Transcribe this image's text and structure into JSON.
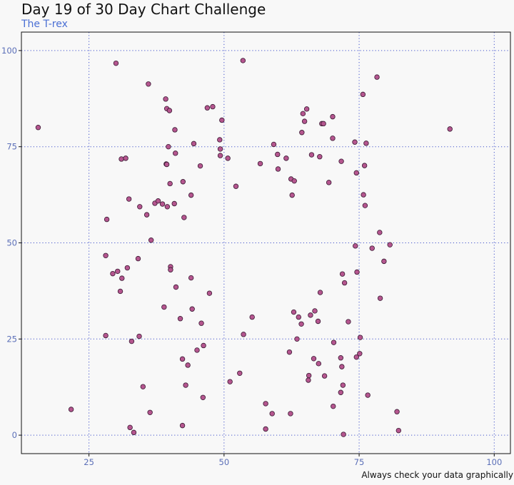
{
  "chart_data": {
    "type": "scatter",
    "title": "Day 19 of 30 Day Chart Challenge",
    "subtitle": "The T-rex",
    "caption": "Always check your data graphically",
    "xlabel": "",
    "ylabel": "",
    "xlim": [
      12.5,
      103
    ],
    "ylim": [
      -4.8,
      104.8
    ],
    "x_ticks": [
      25,
      50,
      75,
      100
    ],
    "y_ticks": [
      0,
      25,
      50,
      75,
      100
    ],
    "grid": true,
    "colors": {
      "point_fill": "#b5568f",
      "point_stroke": "#3a1a33",
      "grid": "#4455cc",
      "tick_label": "#5b6fb8"
    },
    "points": [
      [
        15.6,
        80.0
      ],
      [
        21.7,
        6.7
      ],
      [
        28.1,
        25.9
      ],
      [
        28.1,
        46.7
      ],
      [
        28.3,
        56.1
      ],
      [
        29.4,
        42.0
      ],
      [
        30.0,
        96.7
      ],
      [
        30.3,
        42.6
      ],
      [
        30.8,
        37.4
      ],
      [
        31.0,
        71.8
      ],
      [
        31.1,
        40.8
      ],
      [
        31.8,
        72.0
      ],
      [
        32.1,
        43.5
      ],
      [
        32.4,
        61.4
      ],
      [
        32.6,
        2.0
      ],
      [
        32.9,
        24.4
      ],
      [
        33.3,
        0.7
      ],
      [
        34.1,
        45.9
      ],
      [
        34.3,
        25.7
      ],
      [
        34.4,
        59.4
      ],
      [
        35.0,
        12.6
      ],
      [
        35.7,
        57.3
      ],
      [
        36.0,
        91.3
      ],
      [
        36.3,
        5.9
      ],
      [
        36.5,
        50.7
      ],
      [
        37.2,
        60.3
      ],
      [
        37.8,
        60.9
      ],
      [
        38.6,
        60.1
      ],
      [
        38.9,
        33.3
      ],
      [
        39.2,
        87.4
      ],
      [
        39.3,
        70.5
      ],
      [
        39.4,
        70.4
      ],
      [
        39.4,
        84.9
      ],
      [
        39.5,
        59.4
      ],
      [
        39.7,
        75.0
      ],
      [
        39.9,
        84.4
      ],
      [
        40.0,
        65.4
      ],
      [
        40.1,
        43.8
      ],
      [
        40.1,
        43.0
      ],
      [
        40.8,
        60.2
      ],
      [
        41.0,
        73.3
      ],
      [
        40.9,
        79.4
      ],
      [
        41.1,
        38.5
      ],
      [
        41.9,
        30.3
      ],
      [
        42.3,
        2.5
      ],
      [
        42.3,
        19.8
      ],
      [
        42.4,
        65.9
      ],
      [
        42.6,
        56.6
      ],
      [
        42.9,
        13.0
      ],
      [
        43.3,
        18.2
      ],
      [
        43.9,
        40.9
      ],
      [
        43.9,
        62.4
      ],
      [
        44.1,
        32.8
      ],
      [
        44.4,
        75.8
      ],
      [
        45.0,
        22.1
      ],
      [
        45.6,
        70.0
      ],
      [
        45.8,
        29.1
      ],
      [
        46.1,
        9.8
      ],
      [
        46.2,
        23.3
      ],
      [
        46.9,
        85.1
      ],
      [
        47.3,
        36.9
      ],
      [
        47.9,
        85.4
      ],
      [
        49.2,
        76.8
      ],
      [
        49.3,
        74.4
      ],
      [
        49.3,
        72.7
      ],
      [
        49.6,
        81.9
      ],
      [
        50.7,
        72.0
      ],
      [
        51.1,
        13.9
      ],
      [
        52.2,
        64.7
      ],
      [
        52.9,
        16.1
      ],
      [
        53.5,
        97.4
      ],
      [
        53.6,
        26.2
      ],
      [
        55.2,
        30.7
      ],
      [
        56.7,
        70.6
      ],
      [
        57.7,
        8.2
      ],
      [
        57.7,
        1.6
      ],
      [
        58.9,
        5.6
      ],
      [
        59.2,
        75.6
      ],
      [
        59.9,
        73.0
      ],
      [
        60.0,
        69.2
      ],
      [
        61.5,
        72.0
      ],
      [
        62.1,
        21.6
      ],
      [
        62.3,
        5.6
      ],
      [
        62.4,
        66.6
      ],
      [
        62.6,
        62.4
      ],
      [
        62.9,
        32.0
      ],
      [
        63.0,
        66.1
      ],
      [
        63.5,
        25.0
      ],
      [
        63.8,
        30.7
      ],
      [
        64.3,
        28.9
      ],
      [
        64.4,
        78.7
      ],
      [
        64.6,
        83.6
      ],
      [
        64.9,
        81.6
      ],
      [
        65.3,
        84.8
      ],
      [
        65.6,
        14.3
      ],
      [
        65.7,
        15.5
      ],
      [
        66.0,
        31.2
      ],
      [
        66.2,
        72.9
      ],
      [
        66.6,
        19.9
      ],
      [
        66.8,
        32.3
      ],
      [
        67.4,
        29.6
      ],
      [
        67.5,
        18.6
      ],
      [
        67.7,
        72.4
      ],
      [
        67.8,
        37.1
      ],
      [
        68.1,
        81.0
      ],
      [
        68.4,
        81.0
      ],
      [
        68.6,
        15.4
      ],
      [
        69.4,
        65.7
      ],
      [
        70.1,
        82.8
      ],
      [
        70.1,
        77.2
      ],
      [
        70.2,
        7.5
      ],
      [
        70.3,
        24.1
      ],
      [
        71.6,
        11.1
      ],
      [
        71.6,
        20.1
      ],
      [
        71.7,
        71.2
      ],
      [
        71.8,
        17.8
      ],
      [
        71.9,
        41.9
      ],
      [
        72.0,
        13.0
      ],
      [
        72.1,
        0.2
      ],
      [
        72.3,
        39.6
      ],
      [
        73.0,
        29.5
      ],
      [
        74.2,
        76.2
      ],
      [
        74.3,
        49.2
      ],
      [
        74.5,
        68.2
      ],
      [
        74.5,
        20.3
      ],
      [
        74.6,
        42.4
      ],
      [
        75.1,
        21.2
      ],
      [
        75.2,
        25.4
      ],
      [
        75.7,
        88.6
      ],
      [
        75.8,
        62.5
      ],
      [
        76.0,
        70.1
      ],
      [
        76.1,
        59.7
      ],
      [
        76.3,
        75.9
      ],
      [
        76.6,
        10.4
      ],
      [
        77.4,
        48.6
      ],
      [
        78.3,
        93.1
      ],
      [
        78.8,
        52.7
      ],
      [
        78.9,
        35.6
      ],
      [
        79.6,
        45.2
      ],
      [
        80.7,
        49.5
      ],
      [
        82.0,
        6.1
      ],
      [
        82.3,
        1.2
      ],
      [
        91.8,
        79.6
      ]
    ]
  }
}
